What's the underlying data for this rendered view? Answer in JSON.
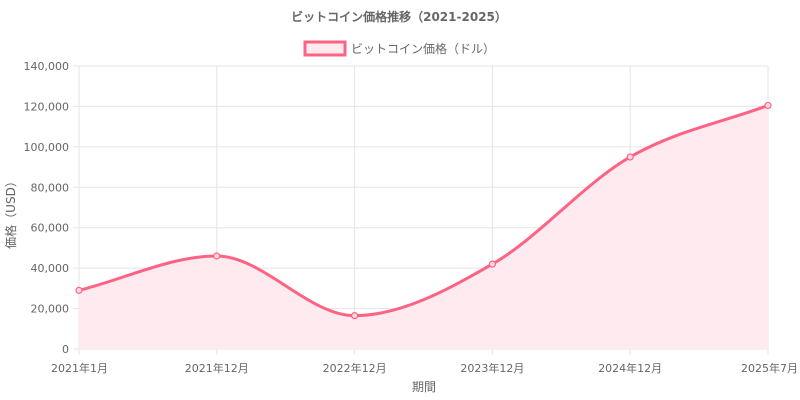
{
  "chart_data": {
    "type": "line",
    "title": "ビットコイン価格推移（2021-2025）",
    "xlabel": "期間",
    "ylabel": "価格（USD）",
    "categories": [
      "2021年1月",
      "2021年12月",
      "2022年12月",
      "2023年12月",
      "2024年12月",
      "2025年7月"
    ],
    "series": [
      {
        "name": "ビットコイン価格（ドル）",
        "values": [
          29000,
          46000,
          16500,
          42000,
          95000,
          120500
        ]
      }
    ],
    "ylim": [
      0,
      140000
    ],
    "yticks": [
      0,
      20000,
      40000,
      60000,
      80000,
      100000,
      120000,
      140000
    ],
    "ytick_labels": [
      "0",
      "20,000",
      "40,000",
      "60,000",
      "80,000",
      "100,000",
      "120,000",
      "140,000"
    ],
    "grid": true,
    "legend_position": "top-center",
    "fill": true,
    "line_color": "#ff6384",
    "fill_color": "#ffebef"
  }
}
